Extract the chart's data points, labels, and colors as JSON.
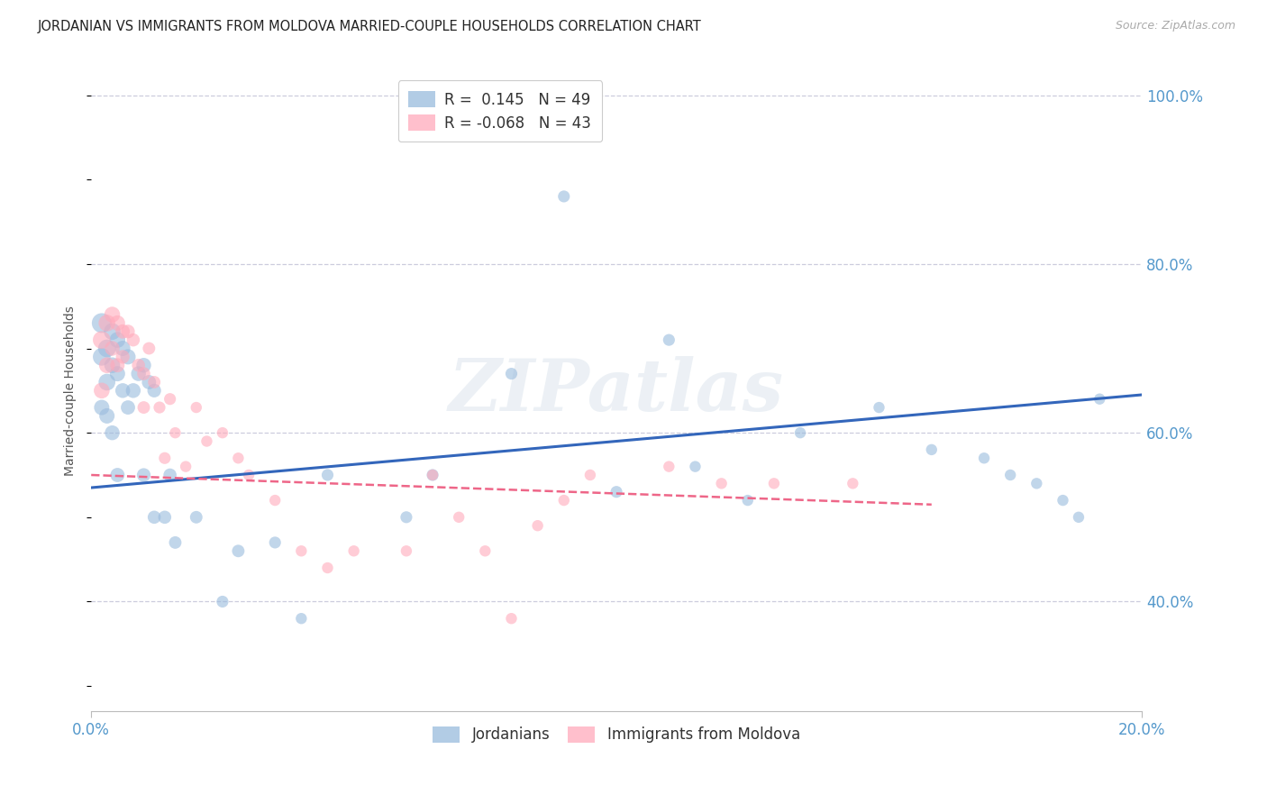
{
  "title": "JORDANIAN VS IMMIGRANTS FROM MOLDOVA MARRIED-COUPLE HOUSEHOLDS CORRELATION CHART",
  "source": "Source: ZipAtlas.com",
  "ylabel": "Married-couple Households",
  "watermark": "ZIPatlas",
  "blue_color": "#99bbdd",
  "pink_color": "#ffaabb",
  "blue_line_color": "#3366bb",
  "pink_line_color": "#ee6688",
  "bg_color": "#ffffff",
  "grid_color": "#ccccdd",
  "axis_label_color": "#5599cc",
  "title_color": "#222222",
  "xmin": 0.0,
  "xmax": 0.2,
  "ymin": 27.0,
  "ymax": 103.0,
  "yticks": [
    40.0,
    60.0,
    80.0,
    100.0
  ],
  "xtick_left": "0.0%",
  "xtick_right": "20.0%",
  "legend1_label": "R =  0.145   N = 49",
  "legend2_label": "R = -0.068   N = 43",
  "legend_bottom1": "Jordanians",
  "legend_bottom2": "Immigrants from Moldova",
  "jordanians_x": [
    0.002,
    0.002,
    0.002,
    0.003,
    0.003,
    0.003,
    0.004,
    0.004,
    0.004,
    0.005,
    0.005,
    0.005,
    0.006,
    0.006,
    0.007,
    0.007,
    0.008,
    0.009,
    0.01,
    0.01,
    0.011,
    0.012,
    0.012,
    0.014,
    0.015,
    0.016,
    0.02,
    0.025,
    0.028,
    0.035,
    0.04,
    0.045,
    0.06,
    0.065,
    0.08,
    0.09,
    0.1,
    0.11,
    0.115,
    0.125,
    0.135,
    0.15,
    0.16,
    0.17,
    0.175,
    0.18,
    0.185,
    0.188,
    0.192
  ],
  "jordanians_y": [
    73.0,
    69.0,
    63.0,
    70.0,
    66.0,
    62.0,
    72.0,
    68.0,
    60.0,
    71.0,
    67.0,
    55.0,
    70.0,
    65.0,
    69.0,
    63.0,
    65.0,
    67.0,
    68.0,
    55.0,
    66.0,
    65.0,
    50.0,
    50.0,
    55.0,
    47.0,
    50.0,
    40.0,
    46.0,
    47.0,
    38.0,
    55.0,
    50.0,
    55.0,
    67.0,
    88.0,
    53.0,
    71.0,
    56.0,
    52.0,
    60.0,
    63.0,
    58.0,
    57.0,
    55.0,
    54.0,
    52.0,
    50.0,
    64.0
  ],
  "jordanians_sizes": [
    250,
    200,
    150,
    200,
    180,
    150,
    180,
    160,
    140,
    160,
    150,
    130,
    150,
    140,
    150,
    130,
    140,
    140,
    140,
    120,
    130,
    120,
    110,
    110,
    110,
    100,
    100,
    90,
    100,
    90,
    80,
    90,
    90,
    90,
    90,
    90,
    90,
    90,
    80,
    80,
    80,
    80,
    80,
    80,
    80,
    80,
    80,
    80,
    80
  ],
  "moldovans_x": [
    0.002,
    0.002,
    0.003,
    0.003,
    0.004,
    0.004,
    0.005,
    0.005,
    0.006,
    0.006,
    0.007,
    0.008,
    0.009,
    0.01,
    0.01,
    0.011,
    0.012,
    0.013,
    0.014,
    0.015,
    0.016,
    0.018,
    0.02,
    0.022,
    0.025,
    0.028,
    0.03,
    0.035,
    0.04,
    0.045,
    0.05,
    0.06,
    0.065,
    0.07,
    0.075,
    0.08,
    0.085,
    0.09,
    0.095,
    0.11,
    0.12,
    0.13,
    0.145
  ],
  "moldovans_y": [
    71.0,
    65.0,
    73.0,
    68.0,
    74.0,
    70.0,
    73.0,
    68.0,
    72.0,
    69.0,
    72.0,
    71.0,
    68.0,
    67.0,
    63.0,
    70.0,
    66.0,
    63.0,
    57.0,
    64.0,
    60.0,
    56.0,
    63.0,
    59.0,
    60.0,
    57.0,
    55.0,
    52.0,
    46.0,
    44.0,
    46.0,
    46.0,
    55.0,
    50.0,
    46.0,
    38.0,
    49.0,
    52.0,
    55.0,
    56.0,
    54.0,
    54.0,
    54.0
  ],
  "moldovans_sizes": [
    200,
    160,
    180,
    160,
    160,
    140,
    150,
    130,
    130,
    120,
    120,
    110,
    110,
    110,
    100,
    100,
    100,
    90,
    90,
    90,
    80,
    80,
    80,
    80,
    80,
    80,
    80,
    80,
    80,
    80,
    80,
    80,
    80,
    80,
    80,
    80,
    80,
    80,
    80,
    80,
    80,
    80,
    80
  ],
  "blue_trend_x": [
    0.0,
    0.2
  ],
  "blue_trend_y": [
    53.5,
    64.5
  ],
  "pink_trend_x": [
    0.0,
    0.16
  ],
  "pink_trend_y": [
    55.0,
    51.5
  ]
}
